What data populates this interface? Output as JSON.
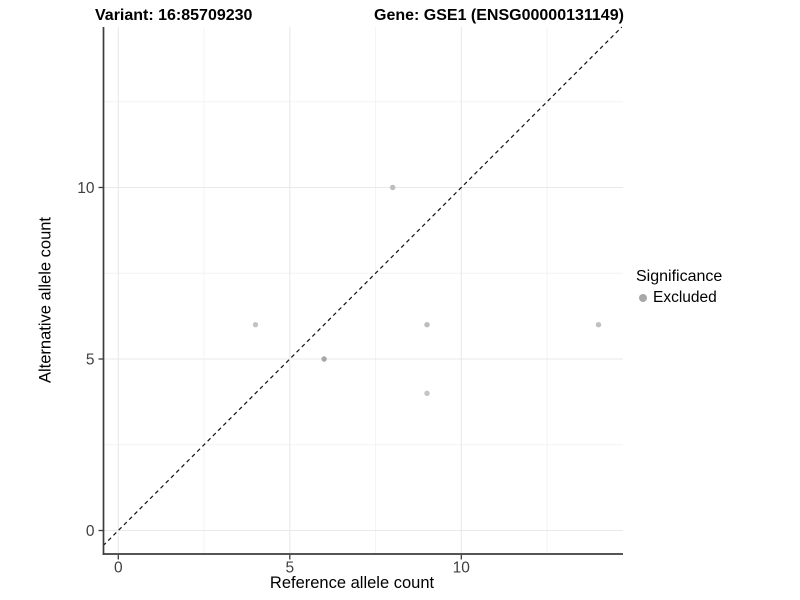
{
  "titles": {
    "variant": "Variant: 16:85709230",
    "gene": "Gene: GSE1 (ENSG00000131149)"
  },
  "axes": {
    "x": {
      "label": "Reference allele count",
      "tick_labels": [
        "0",
        "5",
        "10"
      ],
      "tick_values": [
        0,
        5,
        10
      ],
      "minor_values": [
        2.5,
        7.5,
        12.5
      ]
    },
    "y": {
      "label": "Alternative allele count",
      "tick_labels": [
        "0",
        "5",
        "10"
      ],
      "tick_values": [
        0,
        5,
        10
      ],
      "minor_values": [
        2.5,
        7.5,
        12.5
      ]
    }
  },
  "legend": {
    "title": "Significance",
    "items": [
      {
        "label": "Excluded",
        "color": "#a8a8a8"
      }
    ]
  },
  "chart_data": {
    "type": "scatter",
    "title": "Variant: 16:85709230 / Gene: GSE1 (ENSG00000131149)",
    "xlabel": "Reference allele count",
    "ylabel": "Alternative allele count",
    "xlim": [
      -0.45,
      14.72
    ],
    "ylim": [
      -0.66,
      14.68
    ],
    "grid": true,
    "legend_position": "right",
    "series": [
      {
        "name": "Excluded",
        "color": "#c0c0c0",
        "points": [
          {
            "x": 4,
            "y": 6,
            "color": "#c4c4c4"
          },
          {
            "x": 6,
            "y": 5,
            "color": "#a6a6a6"
          },
          {
            "x": 8,
            "y": 10,
            "color": "#bdbdbd"
          },
          {
            "x": 9,
            "y": 6,
            "color": "#bdbdbd"
          },
          {
            "x": 9,
            "y": 4,
            "color": "#c4c4c4"
          },
          {
            "x": 14,
            "y": 6,
            "color": "#c0c0c0"
          }
        ]
      }
    ],
    "reference_line": {
      "type": "identity",
      "label": "y = x",
      "style": "dashed",
      "color": "#111111"
    }
  },
  "colors": {
    "background": "#ffffff",
    "grid_major": "#e9e9e9",
    "grid_minor": "#f3f3f3",
    "axis_line": "#3d3d3d",
    "tick_label": "#404040",
    "point_default": "#c0c0c0",
    "diagonal": "#111111"
  }
}
